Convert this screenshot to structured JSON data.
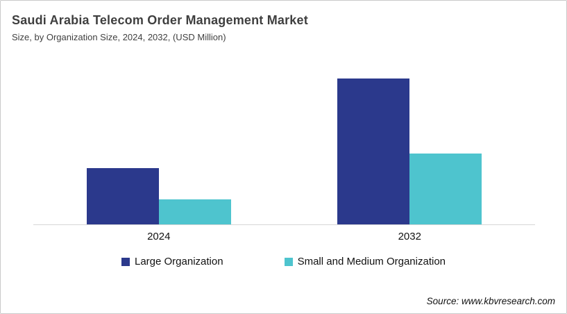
{
  "header": {
    "title": "Saudi Arabia Telecom Order Management Market",
    "subtitle": "Size, by Organization Size, 2024, 2032, (USD Million)"
  },
  "footer": {
    "source": "Source: www.kbvresearch.com"
  },
  "colors": {
    "large_org": "#2B398C",
    "smb_org": "#4EC4CE",
    "axis_line": "#D6D6D6",
    "frame_border": "#C9C9C9"
  },
  "chart_data": {
    "type": "bar",
    "title": "Saudi Arabia Telecom Order Management Market",
    "subtitle": "Size, by Organization Size, 2024, 2032, (USD Million)",
    "unit": "USD Million",
    "categories": [
      "2024",
      "2032"
    ],
    "series": [
      {
        "name": "Large Organization",
        "color": "#2B398C",
        "values": [
          81,
          210
        ]
      },
      {
        "name": "Small and Medium Organization",
        "color": "#4EC4CE",
        "values": [
          36,
          102
        ]
      }
    ],
    "ylim": [
      0,
      230
    ],
    "grid": false,
    "y_axis_labels_shown": false,
    "value_labels_shown": false,
    "legend_position": "bottom"
  }
}
